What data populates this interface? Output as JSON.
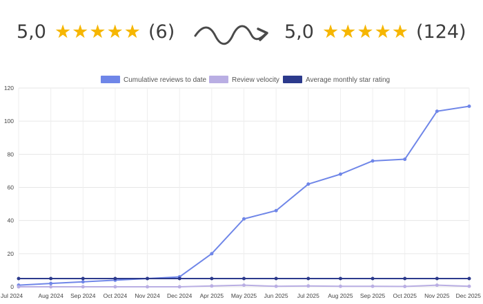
{
  "banner": {
    "before": {
      "score": "5,0",
      "count": "(6)",
      "stars": 5
    },
    "after": {
      "score": "5,0",
      "count": "(124)",
      "stars": 5
    },
    "star_color": "#f6b600"
  },
  "chart_data": {
    "type": "line",
    "categories": [
      "Jul 2024",
      "Aug 2024",
      "Sep 2024",
      "Oct 2024",
      "Nov 2024",
      "Dec 2024",
      "Apr 2025",
      "May 2025",
      "Jun 2025",
      "Jul 2025",
      "Aug 2025",
      "Sep 2025",
      "Oct 2025",
      "Nov 2025",
      "Dec 2025"
    ],
    "series": [
      {
        "name": "Cumulative reviews to date",
        "color": "#6f86e8",
        "values": [
          1,
          2,
          3,
          4,
          5,
          6,
          20,
          41,
          46,
          62,
          68,
          76,
          77,
          106,
          109
        ]
      },
      {
        "name": "Review velocity",
        "color": "#b9aee3",
        "values": [
          0,
          0,
          0,
          0,
          0,
          0,
          0.5,
          1,
          0.3,
          0.5,
          0.3,
          0.3,
          0.2,
          1,
          0.3
        ]
      },
      {
        "name": "Average monthly star rating",
        "color": "#2c3a8c",
        "values": [
          5,
          5,
          5,
          5,
          5,
          5,
          5,
          5,
          5,
          5,
          5,
          5,
          5,
          5,
          5
        ]
      }
    ],
    "yticks": [
      "0",
      "20",
      "40",
      "60",
      "80",
      "100",
      "120"
    ],
    "ylim": [
      0,
      120
    ],
    "grid": true,
    "legend_position": "top"
  }
}
